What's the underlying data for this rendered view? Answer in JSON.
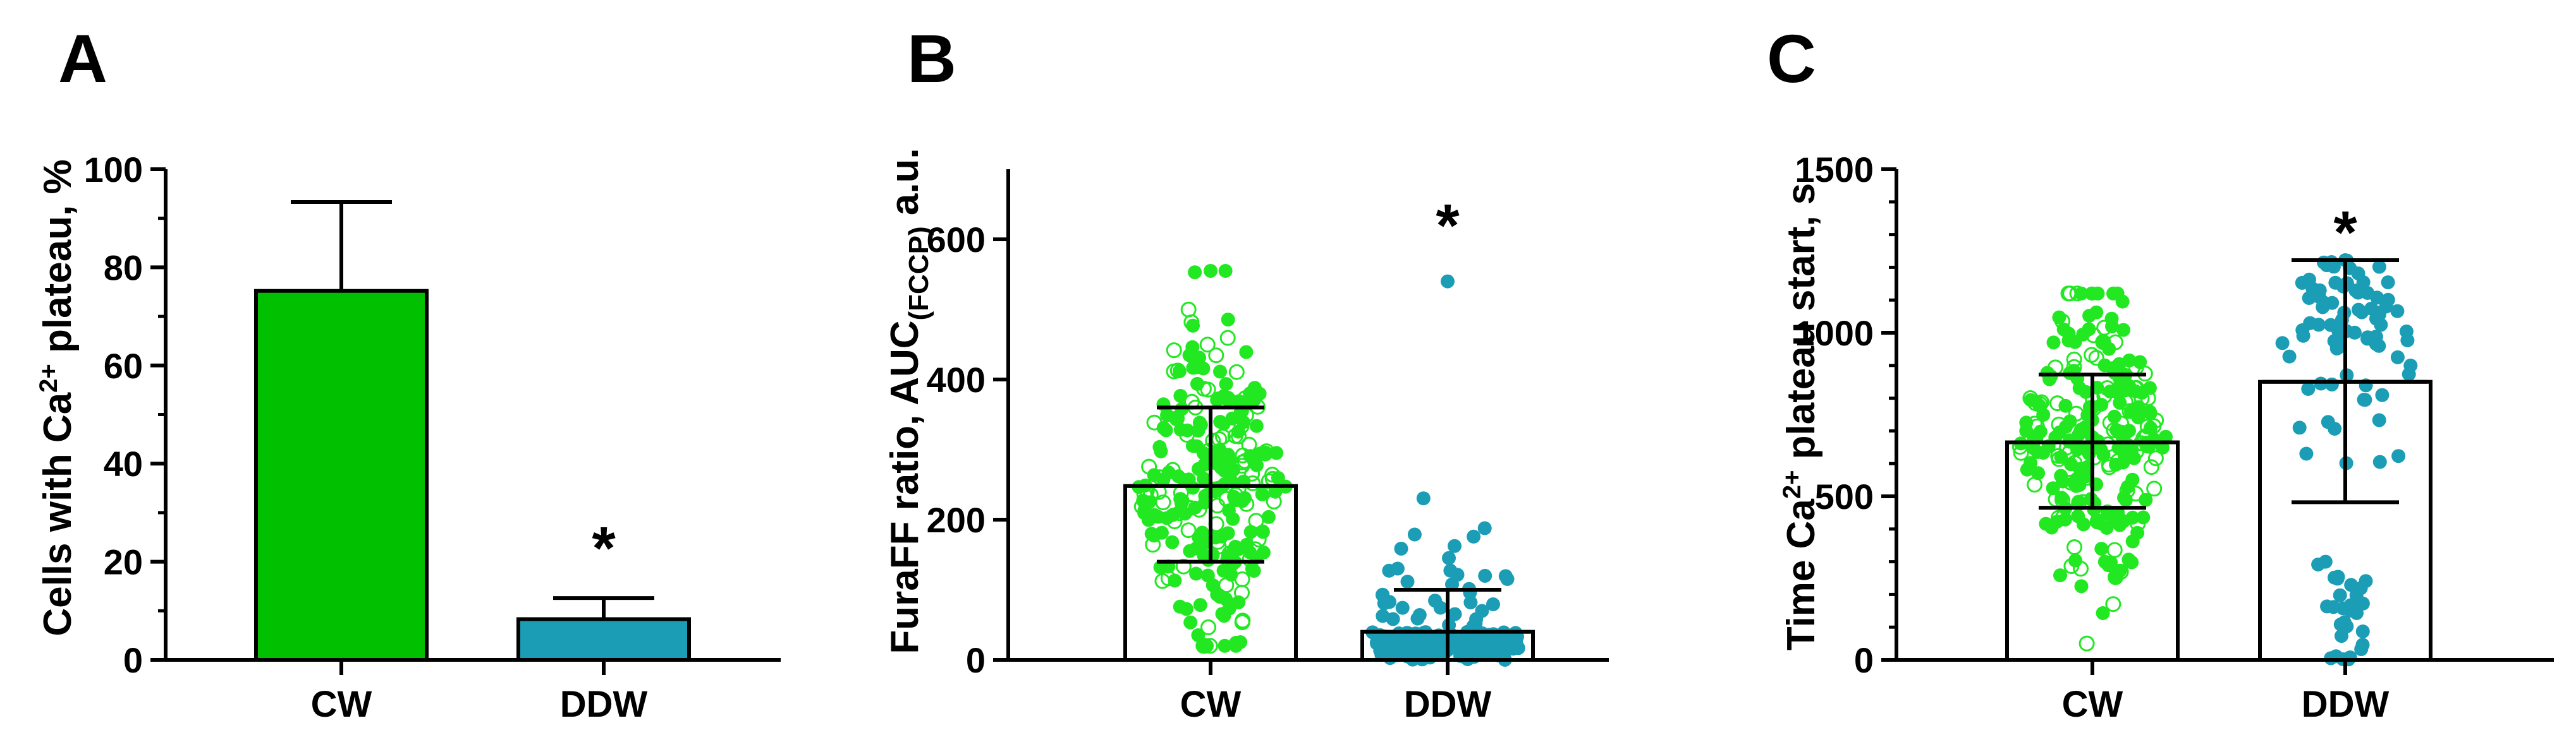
{
  "chart_data": [
    {
      "panel": "A",
      "type": "bar",
      "categories": [
        "CW",
        "DDW"
      ],
      "values": [
        75.2,
        8.3
      ],
      "error_upper": [
        93.3,
        12.6
      ],
      "colors": [
        "#00c000",
        "#1a9db5"
      ],
      "ylabel_parts": [
        "Cells with Ca",
        "2+",
        " plateau, %"
      ],
      "ylim": [
        0,
        100
      ],
      "yticks": [
        "0",
        "20",
        "40",
        "60",
        "80",
        "100"
      ],
      "ytick_values": [
        0,
        20,
        40,
        60,
        80,
        100
      ],
      "annotations": [
        {
          "category": "DDW",
          "text": "*",
          "y": 25
        }
      ]
    },
    {
      "panel": "B",
      "type": "scatter",
      "categories": [
        "CW",
        "DDW"
      ],
      "values": [
        248,
        40
      ],
      "error_upper": [
        360,
        100
      ],
      "error_lower": [
        140,
        0
      ],
      "point_colors": [
        "#22e822",
        "#1a9db5"
      ],
      "point_style": [
        "mixed-open-filled",
        "filled"
      ],
      "point_spread": [
        [
          20,
          555
        ],
        [
          0,
          540
        ]
      ],
      "ylabel_parts": [
        "FuraFF ratio, AUC",
        "(FCCP)",
        " a.u."
      ],
      "ylim": [
        0,
        700
      ],
      "yticks": [
        "0",
        "200",
        "400",
        "600"
      ],
      "ytick_values": [
        0,
        200,
        400,
        600
      ],
      "annotations": [
        {
          "category": "DDW",
          "text": "*",
          "y": 635
        }
      ]
    },
    {
      "panel": "C",
      "type": "scatter",
      "categories": [
        "CW",
        "DDW"
      ],
      "values": [
        665,
        850
      ],
      "error_upper": [
        872,
        1222
      ],
      "error_lower": [
        465,
        482
      ],
      "point_colors": [
        "#22e822",
        "#1a9db5"
      ],
      "point_style": [
        "mixed-open-filled",
        "filled"
      ],
      "point_spread": [
        [
          50,
          1120
        ],
        [
          0,
          1222
        ]
      ],
      "ylabel_parts": [
        "Time Ca",
        "2+",
        " plateau start, s"
      ],
      "ylim": [
        0,
        1500
      ],
      "yticks": [
        "0",
        "500",
        "1000",
        "1500"
      ],
      "ytick_values": [
        0,
        500,
        1000,
        1500
      ],
      "annotations": [
        {
          "category": "DDW",
          "text": "*",
          "y": 1340
        }
      ]
    }
  ]
}
